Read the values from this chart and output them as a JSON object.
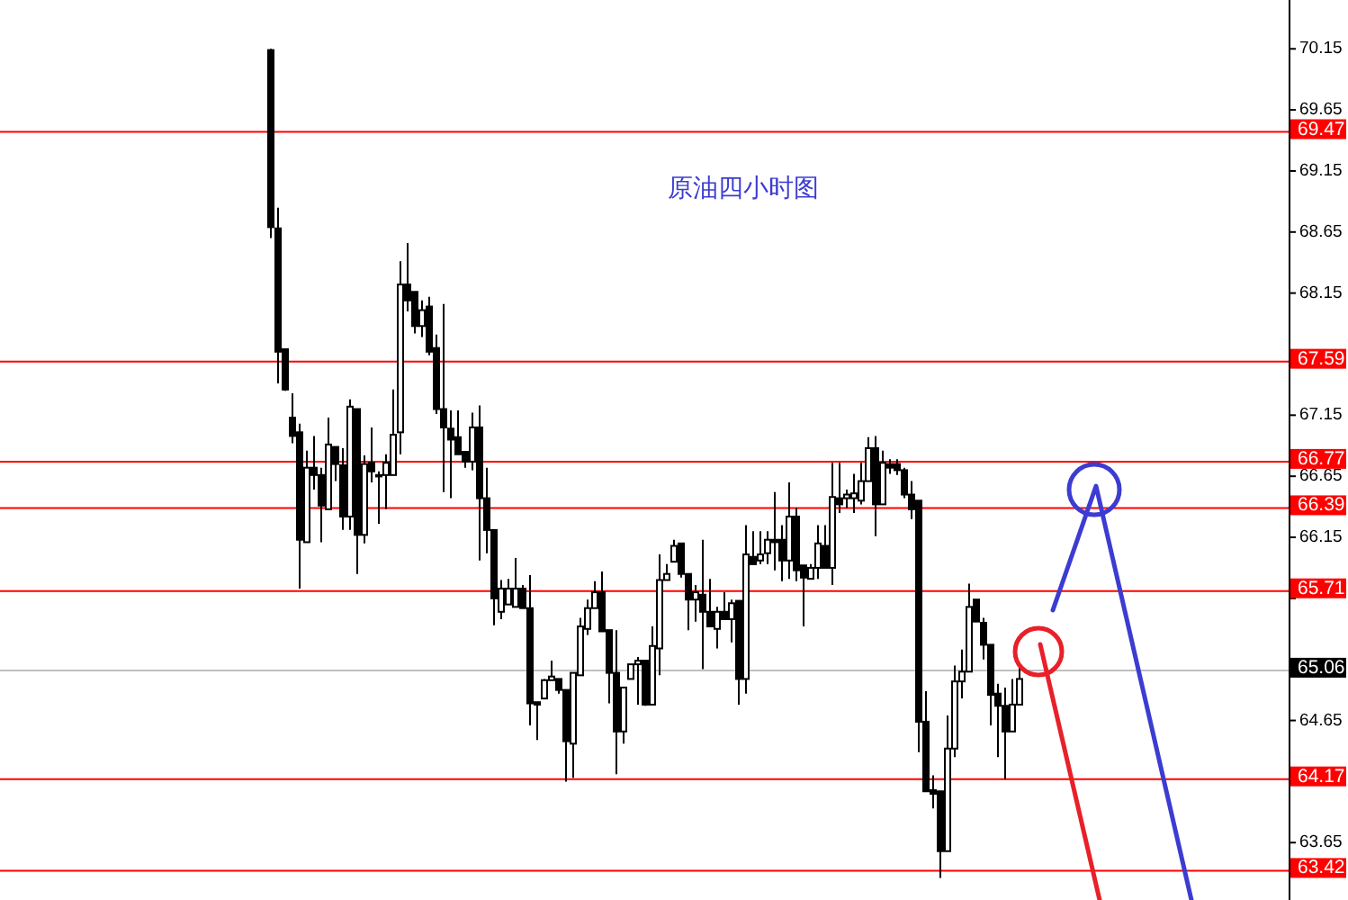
{
  "chart_data": {
    "type": "candlestick",
    "title": "原油四小时图",
    "color": "#000000",
    "categories": [
      null,
      null,
      null,
      null,
      null,
      null,
      null,
      null,
      null,
      null,
      null,
      null,
      null,
      null,
      null,
      null,
      null,
      null,
      null,
      null,
      null,
      null,
      null,
      null,
      null,
      null,
      null,
      null,
      null,
      null,
      null,
      null,
      null,
      null,
      null,
      null,
      null,
      null,
      null,
      null,
      null,
      null,
      null,
      null,
      null,
      null,
      null,
      null,
      null,
      null,
      null,
      null,
      null,
      null,
      null,
      null,
      null,
      null,
      null,
      null,
      null,
      null,
      null,
      null,
      null,
      null,
      null,
      null,
      null,
      null,
      null,
      null,
      null,
      null,
      null,
      null,
      null,
      null,
      null,
      null,
      null,
      null,
      null,
      null,
      null,
      null,
      null,
      null,
      null,
      null,
      null,
      null,
      null,
      null,
      null,
      null,
      null,
      null,
      null,
      null,
      null,
      null,
      null,
      null,
      null,
      null,
      null,
      null,
      null,
      null,
      null,
      null,
      null,
      null,
      null,
      null,
      null,
      null,
      null,
      null,
      null,
      null,
      null,
      null,
      null,
      null,
      null,
      null,
      null,
      null,
      null,
      null,
      null,
      null,
      null,
      null,
      null,
      null,
      null,
      null,
      null,
      null,
      null,
      null,
      null,
      null,
      null,
      null,
      null,
      null,
      null,
      null,
      null,
      null,
      null,
      null,
      null,
      null,
      null,
      null,
      null,
      null,
      null,
      null,
      null,
      null,
      null,
      null,
      null,
      null,
      null,
      null,
      null,
      null,
      null,
      null,
      null,
      null,
      null
    ],
    "ohlc": [
      null,
      null,
      null,
      null,
      null,
      null,
      null,
      null,
      null,
      null,
      null,
      null,
      null,
      null,
      null,
      null,
      null,
      null,
      null,
      null,
      null,
      null,
      null,
      null,
      null,
      null,
      null,
      null,
      null,
      null,
      null,
      null,
      null,
      null,
      null,
      null,
      null,
      [
        70.14,
        70.15,
        68.6,
        68.69
      ],
      [
        68.68,
        68.85,
        67.41,
        67.67
      ],
      [
        67.69,
        67.69,
        67.35,
        67.36
      ],
      [
        67.13,
        67.33,
        66.92,
        66.98
      ],
      [
        67.01,
        67.08,
        65.73,
        66.13
      ],
      [
        66.11,
        66.86,
        66.11,
        66.72
      ],
      [
        66.72,
        66.98,
        66.54,
        66.66
      ],
      [
        66.66,
        66.72,
        66.11,
        66.41
      ],
      [
        66.38,
        67.13,
        66.38,
        66.91
      ],
      [
        66.89,
        66.89,
        66.61,
        66.75
      ],
      [
        66.74,
        66.88,
        66.21,
        66.32
      ],
      [
        66.32,
        67.28,
        66.21,
        67.22
      ],
      [
        67.2,
        67.2,
        65.85,
        66.17
      ],
      [
        66.17,
        66.82,
        66.1,
        66.75
      ],
      [
        66.76,
        67.05,
        66.6,
        66.69
      ],
      [
        66.66,
        66.69,
        66.26,
        66.65
      ],
      [
        66.66,
        66.83,
        66.38,
        66.76
      ],
      [
        66.66,
        67.36,
        66.66,
        66.99
      ],
      [
        67.01,
        68.41,
        66.83,
        68.22
      ],
      [
        68.22,
        68.56,
        68.0,
        68.09
      ],
      [
        68.16,
        68.16,
        67.82,
        67.88
      ],
      [
        67.88,
        68.09,
        67.79,
        68.01
      ],
      [
        68.04,
        68.12,
        67.64,
        67.67
      ],
      [
        67.7,
        67.81,
        67.16,
        67.2
      ],
      [
        67.2,
        68.06,
        66.52,
        67.05
      ],
      [
        67.04,
        67.19,
        66.47,
        66.95
      ],
      [
        66.97,
        67.19,
        66.83,
        66.83
      ],
      [
        66.85,
        66.85,
        66.72,
        66.77
      ],
      [
        66.77,
        67.17,
        66.7,
        67.05
      ],
      [
        67.05,
        67.23,
        65.96,
        66.47
      ],
      [
        66.47,
        66.72,
        66.02,
        66.21
      ],
      [
        66.21,
        66.21,
        65.43,
        65.65
      ],
      [
        65.54,
        65.8,
        65.48,
        65.73
      ],
      [
        65.6,
        65.81,
        65.6,
        65.73
      ],
      [
        65.58,
        65.98,
        65.58,
        65.73
      ],
      [
        65.73,
        65.76,
        65.57,
        65.57
      ],
      [
        65.57,
        65.84,
        64.61,
        64.79
      ],
      [
        64.8,
        64.8,
        64.49,
        64.78
      ],
      [
        64.83,
        64.99,
        64.83,
        64.98
      ],
      [
        64.98,
        65.14,
        64.98,
        65.01
      ],
      [
        64.99,
        64.99,
        64.87,
        64.9
      ],
      [
        64.9,
        64.9,
        64.15,
        64.48
      ],
      [
        64.46,
        65.04,
        64.18,
        65.04
      ],
      [
        65.02,
        65.49,
        65.02,
        65.42
      ],
      [
        65.4,
        65.64,
        65.35,
        65.57
      ],
      [
        65.57,
        65.79,
        65.57,
        65.7
      ],
      [
        65.7,
        65.87,
        65.38,
        65.38
      ],
      [
        65.39,
        65.39,
        64.79,
        65.04
      ],
      [
        65.04,
        65.39,
        64.21,
        64.56
      ],
      [
        64.56,
        64.92,
        64.46,
        64.92
      ],
      [
        64.99,
        65.11,
        64.99,
        65.11
      ],
      [
        65.11,
        65.17,
        64.78,
        65.14
      ],
      [
        65.14,
        65.14,
        64.77,
        64.78
      ],
      [
        64.78,
        65.42,
        64.78,
        65.26
      ],
      [
        65.24,
        66.01,
        65.02,
        65.8
      ],
      [
        65.8,
        65.93,
        65.8,
        65.85
      ],
      [
        65.95,
        66.13,
        65.95,
        66.08
      ],
      [
        66.1,
        66.1,
        65.82,
        65.85
      ],
      [
        65.85,
        65.85,
        65.39,
        65.64
      ],
      [
        65.64,
        65.76,
        65.46,
        65.7
      ],
      [
        65.68,
        66.13,
        65.07,
        65.54
      ],
      [
        65.54,
        65.81,
        65.42,
        65.42
      ],
      [
        65.4,
        65.58,
        65.24,
        65.54
      ],
      [
        65.54,
        65.7,
        65.48,
        65.48
      ],
      [
        65.48,
        65.64,
        65.29,
        65.61
      ],
      [
        65.63,
        65.63,
        64.78,
        64.99
      ],
      [
        64.99,
        66.25,
        64.87,
        66.01
      ],
      [
        65.99,
        66.2,
        65.93,
        65.93
      ],
      [
        65.96,
        66.2,
        65.93,
        66.01
      ],
      [
        66.02,
        66.2,
        65.93,
        66.13
      ],
      [
        66.13,
        66.52,
        65.88,
        66.11
      ],
      [
        66.13,
        66.25,
        65.79,
        65.96
      ],
      [
        65.96,
        66.6,
        65.81,
        66.32
      ],
      [
        66.32,
        66.39,
        65.79,
        65.88
      ],
      [
        65.92,
        65.92,
        65.42,
        65.82
      ],
      [
        65.81,
        65.93,
        65.81,
        65.9
      ],
      [
        65.9,
        66.25,
        65.81,
        66.1
      ],
      [
        66.08,
        66.25,
        65.9,
        65.9
      ],
      [
        65.9,
        66.76,
        65.76,
        66.48
      ],
      [
        66.47,
        66.76,
        66.35,
        66.42
      ],
      [
        66.47,
        66.54,
        66.39,
        66.5
      ],
      [
        66.47,
        66.67,
        66.35,
        66.51
      ],
      [
        66.45,
        66.76,
        66.42,
        66.61
      ],
      [
        66.61,
        66.97,
        66.61,
        66.88
      ],
      [
        66.88,
        66.98,
        66.16,
        66.42
      ],
      [
        66.42,
        66.86,
        66.42,
        66.76
      ],
      [
        66.75,
        66.79,
        66.67,
        66.72
      ],
      [
        66.75,
        66.79,
        66.66,
        66.7
      ],
      [
        66.7,
        66.72,
        66.47,
        66.5
      ],
      [
        66.5,
        66.61,
        66.3,
        66.38
      ],
      [
        66.45,
        66.45,
        64.39,
        64.64
      ],
      [
        64.64,
        64.89,
        64.07,
        64.07
      ],
      [
        64.08,
        64.2,
        63.93,
        64.05
      ],
      [
        64.07,
        64.07,
        63.36,
        63.58
      ],
      [
        63.58,
        64.69,
        63.58,
        64.42
      ],
      [
        64.42,
        65.1,
        64.35,
        64.97
      ],
      [
        64.97,
        65.23,
        64.83,
        65.05
      ],
      [
        65.05,
        65.77,
        65.05,
        65.58
      ],
      [
        65.64,
        65.64,
        65.46,
        65.46
      ],
      [
        65.45,
        65.49,
        65.15,
        65.27
      ],
      [
        65.27,
        65.27,
        64.61,
        64.86
      ],
      [
        64.87,
        64.95,
        64.35,
        64.77
      ],
      [
        64.77,
        64.92,
        64.17,
        64.56
      ],
      [
        64.56,
        64.99,
        64.56,
        64.78
      ],
      [
        64.78,
        65.1,
        64.78,
        64.99
      ],
      null,
      null,
      null,
      null,
      null,
      null,
      null,
      null,
      null,
      null,
      null,
      null,
      null,
      null,
      null,
      null,
      null,
      null,
      null,
      null,
      null,
      null,
      null,
      null,
      null,
      null,
      null,
      null,
      null,
      null,
      null,
      null,
      null,
      null,
      null,
      null,
      null
    ],
    "ylim": [
      63.18,
      70.55
    ],
    "yticks": [
      70.15,
      69.65,
      69.15,
      68.65,
      68.15,
      {
        "value": 67.65,
        "label": null
      },
      67.15,
      66.65,
      66.15,
      {
        "value": 65.65,
        "label": null
      },
      {
        "value": 65.15,
        "label": null
      },
      64.65,
      {
        "value": 64.15,
        "label": null
      },
      63.65
    ],
    "ref_lines": [
      {
        "axis": "y",
        "value": 69.47,
        "label": "69.47",
        "color": "#ff0000"
      },
      {
        "axis": "y",
        "value": 67.59,
        "label": "67.59",
        "color": "#ff0000"
      },
      {
        "axis": "y",
        "value": 66.77,
        "label": "66.77",
        "color": "#ff0000"
      },
      {
        "axis": "y",
        "value": 66.39,
        "label": "66.39",
        "color": "#ff0000"
      },
      {
        "axis": "y",
        "value": 65.71,
        "label": "65.71",
        "color": "#ff0000"
      },
      {
        "axis": "y",
        "value": 65.06,
        "label": "65.06",
        "color": "#c0c0c0"
      },
      {
        "axis": "y",
        "value": 64.17,
        "label": "64.17",
        "color": "#ff0000"
      },
      {
        "axis": "y",
        "value": 63.42,
        "label": "63.42",
        "color": "#ff0000"
      }
    ]
  }
}
